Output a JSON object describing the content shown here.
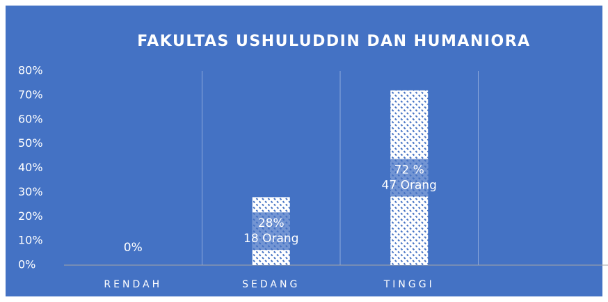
{
  "chart_data": {
    "type": "bar",
    "title": "FAKULTAS USHULUDDIN DAN HUMANIORA",
    "categories": [
      "RENDAH",
      "SEDANG",
      "TINGGI",
      null
    ],
    "values": [
      0,
      28,
      72,
      null
    ],
    "value_labels": [
      [
        "0%"
      ],
      [
        "28%",
        "18 Orang"
      ],
      [
        "72 %",
        "47 Orang"
      ],
      null
    ],
    "color": "#ffffff",
    "ylim": [
      0,
      80
    ],
    "yticks": [
      {
        "value": 0,
        "label": "0%"
      },
      {
        "value": 10,
        "label": "10%"
      },
      {
        "value": 20,
        "label": "20%"
      },
      {
        "value": 30,
        "label": "30%"
      },
      {
        "value": 40,
        "label": "40%"
      },
      {
        "value": 50,
        "label": "50%"
      },
      {
        "value": 60,
        "label": "60%"
      },
      {
        "value": 70,
        "label": "70%"
      },
      {
        "value": 80,
        "label": "80%"
      }
    ],
    "grid": false
  }
}
